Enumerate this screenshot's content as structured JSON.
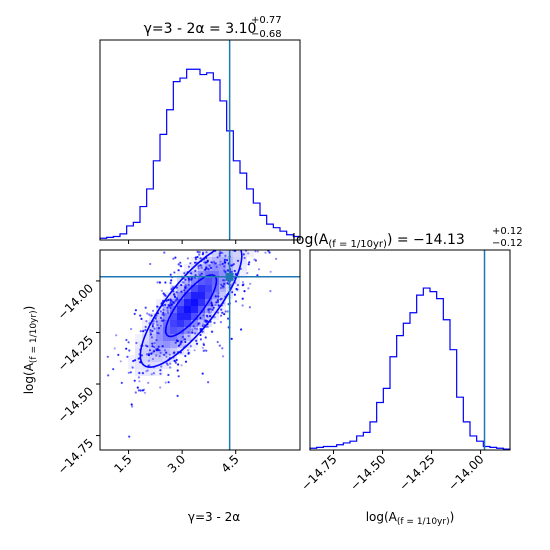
{
  "chart_data": [
    {
      "type": "histogram",
      "panel": "gamma-marginal",
      "title_main": "γ=3 - 2α = 3.10",
      "title_sup": "+0.77",
      "title_sub": "−0.68",
      "x_range": [
        0.7,
        6.3
      ],
      "truth_x": 4.33,
      "color": "#0000ff",
      "bins": {
        "start": 0.7,
        "width": 0.186667,
        "counts": [
          0.01,
          0.015,
          0.02,
          0.035,
          0.08,
          0.1,
          0.19,
          0.29,
          0.45,
          0.6,
          0.74,
          0.9,
          0.92,
          0.97,
          0.97,
          0.94,
          0.95,
          0.91,
          0.79,
          0.62,
          0.45,
          0.38,
          0.29,
          0.21,
          0.14,
          0.09,
          0.07,
          0.05,
          0.03,
          0.02
        ]
      }
    },
    {
      "type": "scatter-contour",
      "panel": "joint",
      "x_range": [
        0.7,
        6.3
      ],
      "y_range": [
        -14.82,
        -13.85
      ],
      "xticks": [
        1.5,
        3.0,
        4.5
      ],
      "xtick_labels": [
        "1.5",
        "3.0",
        "4.5"
      ],
      "yticks": [
        -14.0,
        -14.25,
        -14.5,
        -14.75
      ],
      "ytick_labels": [
        "−14.00",
        "−14.25",
        "−14.50",
        "−14.75"
      ],
      "xlabel": "γ=3 - 2α",
      "ylabel_main": "log(A",
      "ylabel_sub": "(f = 1/10yr)",
      "ylabel_end": ")",
      "truth": [
        4.33,
        -13.98
      ],
      "color": "#0000ff",
      "truth_color": "#1f77b4"
    },
    {
      "type": "histogram",
      "panel": "amplitude-marginal",
      "title_main": "log(A",
      "title_sub_var": "(f = 1/10yr)",
      "title_value": ") = −14.13",
      "title_sup": "+0.12",
      "title_sub": "−0.12",
      "x_range": [
        -14.87,
        -13.85
      ],
      "xticks": [
        -14.75,
        -14.5,
        -14.25,
        -14.0
      ],
      "xtick_labels": [
        "−14.75",
        "−14.50",
        "−14.25",
        "−14.00"
      ],
      "xlabel_main": "log(A",
      "xlabel_sub": "(f = 1/10yr)",
      "xlabel_end": ")",
      "truth_x": -13.98,
      "color": "#0000ff",
      "bins": {
        "start": -14.87,
        "width": 0.034,
        "counts": [
          0.01,
          0.015,
          0.02,
          0.02,
          0.03,
          0.04,
          0.05,
          0.08,
          0.1,
          0.16,
          0.27,
          0.35,
          0.53,
          0.65,
          0.72,
          0.78,
          0.88,
          0.92,
          0.9,
          0.86,
          0.74,
          0.57,
          0.3,
          0.16,
          0.08,
          0.05,
          0.02,
          0.015,
          0.01,
          0.005
        ]
      }
    }
  ]
}
